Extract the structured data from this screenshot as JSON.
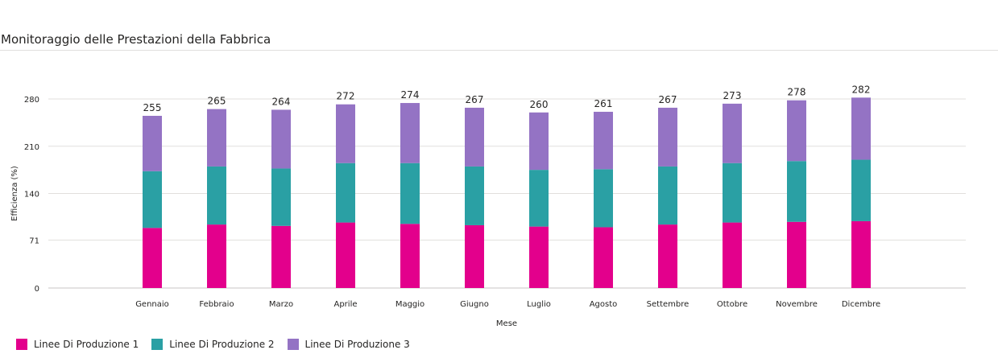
{
  "title": "Monitoraggio delle Prestazioni della Fabbrica",
  "chart_data": {
    "type": "bar",
    "stacked": true,
    "categories": [
      "Gennaio",
      "Febbraio",
      "Marzo",
      "Aprile",
      "Maggio",
      "Giugno",
      "Luglio",
      "Agosto",
      "Settembre",
      "Ottobre",
      "Novembre",
      "Dicembre"
    ],
    "series": [
      {
        "name": "Linee Di Produzione 1",
        "color": "#e3008c",
        "values": [
          89,
          94,
          92,
          97,
          95,
          93,
          91,
          90,
          94,
          97,
          98,
          99
        ]
      },
      {
        "name": "Linee Di Produzione 2",
        "color": "#2aa0a4",
        "values": [
          84,
          86,
          85,
          88,
          90,
          87,
          84,
          86,
          86,
          88,
          90,
          91
        ]
      },
      {
        "name": "Linee Di Produzione 3",
        "color": "#9473c4",
        "values": [
          82,
          85,
          87,
          87,
          89,
          87,
          85,
          85,
          87,
          88,
          90,
          92
        ]
      }
    ],
    "totals": [
      255,
      265,
      264,
      272,
      274,
      267,
      260,
      261,
      267,
      273,
      278,
      282
    ],
    "yticks": [
      0,
      71,
      140,
      210,
      280
    ],
    "ylim": [
      0,
      280
    ],
    "xlabel": "Mese",
    "ylabel": "Efficienza (%)",
    "grid": true,
    "legend_position": "bottom-left"
  }
}
